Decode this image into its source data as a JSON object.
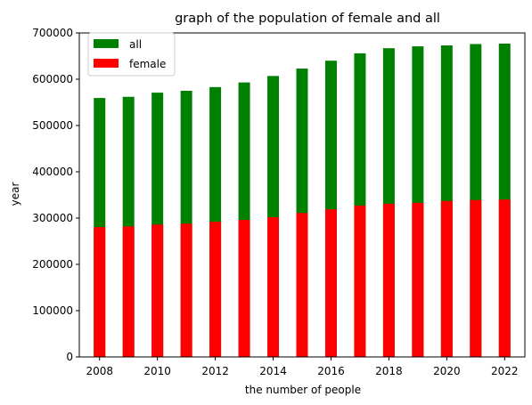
{
  "chart_data": {
    "type": "bar",
    "stacked": false,
    "title": "graph of the population of female and all",
    "xlabel": "the number of people",
    "ylabel": "year",
    "x": [
      2008,
      2009,
      2010,
      2011,
      2012,
      2013,
      2014,
      2015,
      2016,
      2017,
      2018,
      2019,
      2020,
      2021,
      2022
    ],
    "x_ticks": [
      "2008",
      "2010",
      "2012",
      "2014",
      "2016",
      "2018",
      "2020",
      "2022"
    ],
    "y_ticks": [
      "0",
      "100000",
      "200000",
      "300000",
      "400000",
      "500000",
      "600000",
      "700000"
    ],
    "ylim": [
      0,
      700000
    ],
    "xlim": [
      2007.3,
      2022.7
    ],
    "grid": false,
    "legend_position": "top-left",
    "series": [
      {
        "name": "all",
        "color": "#008000",
        "values": [
          559500,
          562000,
          571000,
          575000,
          583000,
          593000,
          607000,
          623000,
          640000,
          656000,
          667000,
          671000,
          673000,
          676000,
          677000
        ]
      },
      {
        "name": "female",
        "color": "#ff0000",
        "values": [
          280500,
          282000,
          286000,
          288000,
          292000,
          296000,
          302000,
          311000,
          319000,
          327000,
          331000,
          333000,
          337000,
          339000,
          340000
        ]
      }
    ]
  }
}
